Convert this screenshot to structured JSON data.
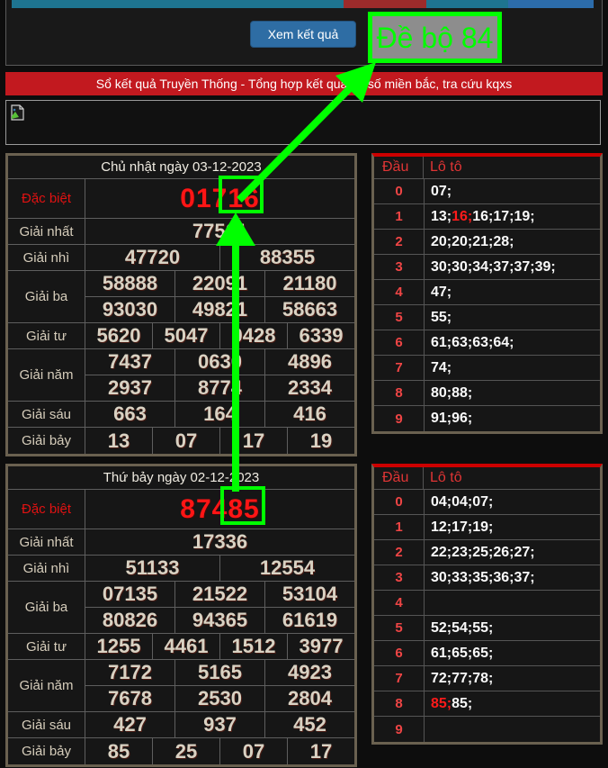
{
  "topbar": {
    "segment_colors": [
      "#1e7490",
      "#9c2b2b",
      "#1e7490",
      "#2c6cab"
    ],
    "segment_widths": [
      369,
      92,
      91,
      95
    ]
  },
  "controls": {
    "view_button_label": "Xem kết quả",
    "annotation_badge_label": "Đề bộ 84"
  },
  "banner": {
    "text": "Sổ kết quả Truyền Thống - Tổng hợp kết quả xổ số miền bắc, tra cứu kqxs"
  },
  "colors": {
    "annotation_green": "#00ff00",
    "banner_red": "#c2191f",
    "special_red": "#ff1515",
    "loto_border_red": "#cc0000",
    "button_blue": "#2e6da4",
    "badge_gray": "#8d8d8d"
  },
  "loto_columns": {
    "head": "Đầu",
    "values": "Lô tô"
  },
  "draws": [
    {
      "title": "Chủ nhật ngày 03-12-2023",
      "prizes": [
        {
          "label": "Đặc biệt",
          "special": true,
          "rows": [
            [
              "01716"
            ]
          ]
        },
        {
          "label": "Giải nhất",
          "special": false,
          "rows": [
            [
              "77561"
            ]
          ]
        },
        {
          "label": "Giải nhì",
          "special": false,
          "rows": [
            [
              "47720",
              "88355"
            ]
          ]
        },
        {
          "label": "Giải ba",
          "special": false,
          "rows": [
            [
              "58888",
              "22091",
              "21180"
            ],
            [
              "93030",
              "49821",
              "58663"
            ]
          ]
        },
        {
          "label": "Giải tư",
          "special": false,
          "rows": [
            [
              "5620",
              "5047",
              "0428",
              "6339"
            ]
          ]
        },
        {
          "label": "Giải năm",
          "special": false,
          "rows": [
            [
              "7437",
              "0630",
              "4896"
            ],
            [
              "2937",
              "8774",
              "2334"
            ]
          ]
        },
        {
          "label": "Giải sáu",
          "special": false,
          "rows": [
            [
              "663",
              "164",
              "416"
            ]
          ]
        },
        {
          "label": "Giải bảy",
          "special": false,
          "rows": [
            [
              "13",
              "07",
              "17",
              "19"
            ]
          ]
        }
      ],
      "loto": [
        {
          "d": "0",
          "nums": [
            "07"
          ],
          "hl": -1
        },
        {
          "d": "1",
          "nums": [
            "13",
            "16",
            "16",
            "17",
            "19"
          ],
          "hl": 1
        },
        {
          "d": "2",
          "nums": [
            "20",
            "20",
            "21",
            "28"
          ],
          "hl": -1
        },
        {
          "d": "3",
          "nums": [
            "30",
            "30",
            "34",
            "37",
            "37",
            "39"
          ],
          "hl": -1
        },
        {
          "d": "4",
          "nums": [
            "47"
          ],
          "hl": -1
        },
        {
          "d": "5",
          "nums": [
            "55"
          ],
          "hl": -1
        },
        {
          "d": "6",
          "nums": [
            "61",
            "63",
            "63",
            "64"
          ],
          "hl": -1
        },
        {
          "d": "7",
          "nums": [
            "74"
          ],
          "hl": -1
        },
        {
          "d": "8",
          "nums": [
            "80",
            "88"
          ],
          "hl": -1
        },
        {
          "d": "9",
          "nums": [
            "91",
            "96"
          ],
          "hl": -1
        }
      ]
    },
    {
      "title": "Thứ bảy ngày 02-12-2023",
      "prizes": [
        {
          "label": "Đặc biệt",
          "special": true,
          "rows": [
            [
              "87485"
            ]
          ]
        },
        {
          "label": "Giải nhất",
          "special": false,
          "rows": [
            [
              "17336"
            ]
          ]
        },
        {
          "label": "Giải nhì",
          "special": false,
          "rows": [
            [
              "51133",
              "12554"
            ]
          ]
        },
        {
          "label": "Giải ba",
          "special": false,
          "rows": [
            [
              "07135",
              "21522",
              "53104"
            ],
            [
              "80826",
              "94365",
              "61619"
            ]
          ]
        },
        {
          "label": "Giải tư",
          "special": false,
          "rows": [
            [
              "1255",
              "4461",
              "1512",
              "3977"
            ]
          ]
        },
        {
          "label": "Giải năm",
          "special": false,
          "rows": [
            [
              "7172",
              "5165",
              "4923"
            ],
            [
              "7678",
              "2530",
              "2804"
            ]
          ]
        },
        {
          "label": "Giải sáu",
          "special": false,
          "rows": [
            [
              "427",
              "937",
              "452"
            ]
          ]
        },
        {
          "label": "Giải bảy",
          "special": false,
          "rows": [
            [
              "85",
              "25",
              "07",
              "17"
            ]
          ]
        }
      ],
      "loto": [
        {
          "d": "0",
          "nums": [
            "04",
            "04",
            "07"
          ],
          "hl": -1
        },
        {
          "d": "1",
          "nums": [
            "12",
            "17",
            "19"
          ],
          "hl": -1
        },
        {
          "d": "2",
          "nums": [
            "22",
            "23",
            "25",
            "26",
            "27"
          ],
          "hl": -1
        },
        {
          "d": "3",
          "nums": [
            "30",
            "33",
            "35",
            "36",
            "37"
          ],
          "hl": -1
        },
        {
          "d": "4",
          "nums": [],
          "hl": -1
        },
        {
          "d": "5",
          "nums": [
            "52",
            "54",
            "55"
          ],
          "hl": -1
        },
        {
          "d": "6",
          "nums": [
            "61",
            "65",
            "65"
          ],
          "hl": -1
        },
        {
          "d": "7",
          "nums": [
            "72",
            "77",
            "78"
          ],
          "hl": -1
        },
        {
          "d": "8",
          "nums": [
            "85",
            "85"
          ],
          "hl": 0
        },
        {
          "d": "9",
          "nums": [],
          "hl": -1
        }
      ]
    }
  ]
}
